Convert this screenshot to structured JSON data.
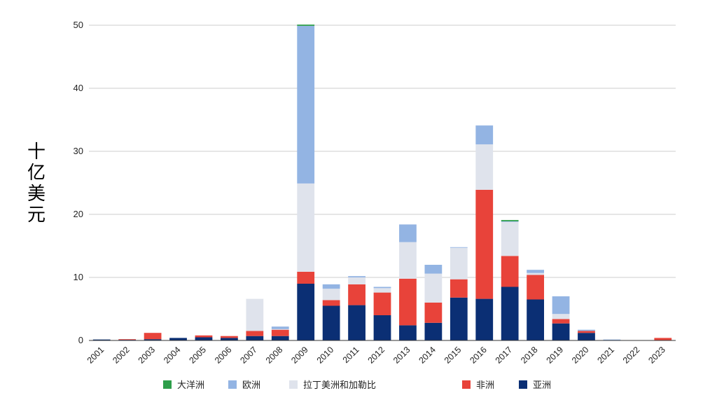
{
  "chart_data": {
    "type": "bar",
    "stacked": true,
    "ylabel": "十亿美元",
    "xlabel": "",
    "ylim": [
      0,
      50
    ],
    "yticks": [
      0,
      10,
      20,
      30,
      40,
      50
    ],
    "grid": true,
    "legend_position": "bottom",
    "categories": [
      "2001",
      "2002",
      "2003",
      "2004",
      "2005",
      "2006",
      "2007",
      "2008",
      "2009",
      "2010",
      "2011",
      "2012",
      "2013",
      "2014",
      "2015",
      "2016",
      "2017",
      "2018",
      "2019",
      "2020",
      "2021",
      "2022",
      "2023"
    ],
    "series": [
      {
        "name": "亚洲",
        "color": "#0b2f74",
        "values": [
          0.15,
          0.1,
          0.2,
          0.4,
          0.5,
          0.4,
          0.7,
          0.7,
          9.0,
          5.5,
          5.6,
          4.0,
          2.4,
          2.8,
          6.8,
          6.6,
          8.5,
          6.5,
          2.7,
          1.2,
          0.05,
          0.05,
          0.0
        ]
      },
      {
        "name": "非洲",
        "color": "#e8433a",
        "values": [
          0.0,
          0.1,
          1.0,
          0.0,
          0.3,
          0.3,
          0.8,
          1.0,
          1.9,
          0.9,
          3.3,
          3.6,
          7.4,
          3.2,
          2.9,
          17.3,
          4.9,
          3.9,
          0.7,
          0.3,
          0.0,
          0.0,
          0.4
        ]
      },
      {
        "name": "拉丁美洲和加勒比",
        "color": "#dfe3ec",
        "values": [
          0.0,
          0.0,
          0.0,
          0.0,
          0.0,
          0.0,
          5.1,
          0.1,
          14.0,
          1.8,
          1.1,
          0.7,
          5.8,
          4.6,
          5.0,
          7.2,
          5.4,
          0.3,
          0.8,
          0.0,
          0.0,
          0.0,
          0.0
        ]
      },
      {
        "name": "欧洲",
        "color": "#93b4e3",
        "values": [
          0.0,
          0.0,
          0.0,
          0.0,
          0.0,
          0.0,
          0.0,
          0.4,
          25.0,
          0.7,
          0.2,
          0.2,
          2.8,
          1.4,
          0.1,
          3.0,
          0.1,
          0.5,
          2.8,
          0.2,
          0.1,
          0.0,
          0.0
        ]
      },
      {
        "name": "大洋洲",
        "color": "#2e9e4a",
        "values": [
          0.0,
          0.0,
          0.0,
          0.0,
          0.0,
          0.0,
          0.0,
          0.0,
          0.2,
          0.0,
          0.0,
          0.0,
          0.0,
          0.0,
          0.0,
          0.0,
          0.2,
          0.0,
          0.0,
          0.0,
          0.0,
          0.0,
          0.0
        ]
      }
    ],
    "legend_order": [
      "大洋洲",
      "欧洲",
      "拉丁美洲和加勒比",
      "非洲",
      "亚洲"
    ]
  }
}
